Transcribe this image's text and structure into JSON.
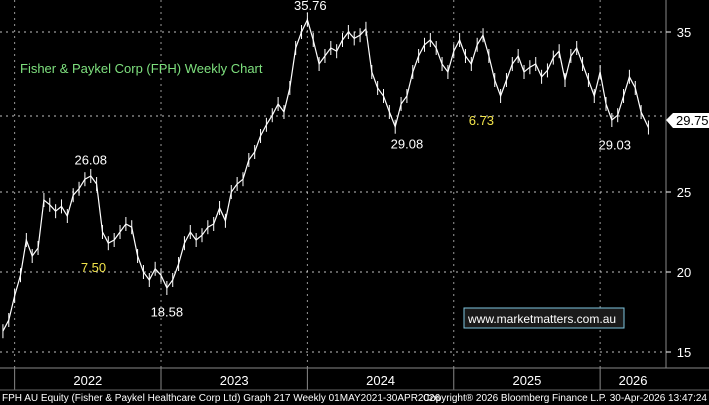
{
  "chart_data": {
    "type": "line",
    "title": "Fisher & Paykel Corp (FPH) Weekly Chart",
    "x_ticks": [
      "2022",
      "2023",
      "2024",
      "2025",
      "2026"
    ],
    "y_ticks": [
      15,
      20,
      25,
      35
    ],
    "ylim": [
      14,
      37
    ],
    "xlim": [
      2021.9,
      2026.45
    ],
    "grid": true,
    "series": [
      {
        "x": [
          2021.92,
          2021.96,
          2022.0,
          2022.04,
          2022.08,
          2022.12,
          2022.16,
          2022.2,
          2022.24,
          2022.28,
          2022.32,
          2022.36,
          2022.4,
          2022.44,
          2022.48,
          2022.52,
          2022.56,
          2022.6,
          2022.64,
          2022.68,
          2022.72,
          2022.76,
          2022.8,
          2022.84,
          2022.88,
          2022.92,
          2022.96,
          2023.0,
          2023.04,
          2023.08,
          2023.12,
          2023.16,
          2023.2,
          2023.24,
          2023.28,
          2023.32,
          2023.36,
          2023.4,
          2023.44,
          2023.48,
          2023.52,
          2023.56,
          2023.6,
          2023.64,
          2023.68,
          2023.72,
          2023.76,
          2023.8,
          2023.84,
          2023.88,
          2023.92,
          2023.96,
          2024.0,
          2024.04,
          2024.08,
          2024.12,
          2024.16,
          2024.2,
          2024.24,
          2024.28,
          2024.32,
          2024.36,
          2024.4,
          2024.44,
          2024.48,
          2024.52,
          2024.56,
          2024.6,
          2024.64,
          2024.68,
          2024.72,
          2024.76,
          2024.8,
          2024.84,
          2024.88,
          2024.92,
          2024.96,
          2025.0,
          2025.04,
          2025.08,
          2025.12,
          2025.16,
          2025.2,
          2025.24,
          2025.28,
          2025.32,
          2025.36,
          2025.4,
          2025.44,
          2025.48,
          2025.52,
          2025.56,
          2025.6,
          2025.64,
          2025.68,
          2025.72,
          2025.76,
          2025.8,
          2025.84,
          2025.88,
          2025.92,
          2025.96,
          2026.0,
          2026.04,
          2026.08,
          2026.12,
          2026.16,
          2026.2,
          2026.24,
          2026.28,
          2026.33
        ],
        "y": [
          16.3,
          17.0,
          18.5,
          19.8,
          22.0,
          21.0,
          21.5,
          24.5,
          24.2,
          23.8,
          24.1,
          23.5,
          24.8,
          25.2,
          25.8,
          26.0,
          25.5,
          22.5,
          21.8,
          22.0,
          22.5,
          23.0,
          22.8,
          21.0,
          20.0,
          19.5,
          20.2,
          19.8,
          19.0,
          19.5,
          20.5,
          21.8,
          22.5,
          22.0,
          22.3,
          22.8,
          23.0,
          24.0,
          23.2,
          25.0,
          25.5,
          25.8,
          27.0,
          27.5,
          28.5,
          29.2,
          29.8,
          30.5,
          30.0,
          31.5,
          34.0,
          35.0,
          35.76,
          34.5,
          33.0,
          33.5,
          34.0,
          33.8,
          34.5,
          35.0,
          34.6,
          34.8,
          35.2,
          32.5,
          31.5,
          31.0,
          30.0,
          29.08,
          30.5,
          31.0,
          32.5,
          33.5,
          34.2,
          34.5,
          34.0,
          33.0,
          32.5,
          33.8,
          34.5,
          33.5,
          33.0,
          34.2,
          34.8,
          33.5,
          32.0,
          31.0,
          32.0,
          33.0,
          33.5,
          32.5,
          32.8,
          33.0,
          32.2,
          32.6,
          33.4,
          33.8,
          32.0,
          33.5,
          34.0,
          33.0,
          32.0,
          31.0,
          32.5,
          30.5,
          29.5,
          29.8,
          31.0,
          32.2,
          31.5,
          30.0,
          29.03
        ]
      }
    ],
    "last_value_label": "29.75",
    "annotations": [
      {
        "text": "35.76",
        "x": 2024.02,
        "y": 35.76,
        "color": "white",
        "anchor": "above"
      },
      {
        "text": "26.08",
        "x": 2022.52,
        "y": 26.08,
        "color": "white",
        "anchor": "above"
      },
      {
        "text": "18.58",
        "x": 2023.04,
        "y": 18.58,
        "color": "white",
        "anchor": "below"
      },
      {
        "text": "29.08",
        "x": 2024.68,
        "y": 29.08,
        "color": "white",
        "anchor": "below"
      },
      {
        "text": "29.03",
        "x": 2026.1,
        "y": 29.03,
        "color": "white",
        "anchor": "below"
      },
      {
        "text": "7.50",
        "x": 2022.68,
        "y": 20.3,
        "color": "yellow",
        "anchor": "left"
      },
      {
        "text": "6.73",
        "x": 2025.33,
        "y": 29.5,
        "color": "yellow",
        "anchor": "left"
      }
    ]
  },
  "watermark": "www.marketmatters.com.au",
  "footer_left": "FPH AU Equity (Fisher & Paykel Healthcare Corp Ltd) Graph 217 Weekly 01MAY2021-30APR2026",
  "footer_right": "Copyright® 2026 Bloomberg Finance L.P.     30-Apr-2026 13:47:24",
  "colors": {
    "background": "#000000",
    "price_line": "#ffffff",
    "grid": "#ffffff",
    "title": "#7ee07e",
    "yellow_annotation": "#f1e34a",
    "last_value_bg": "#ffffff"
  }
}
